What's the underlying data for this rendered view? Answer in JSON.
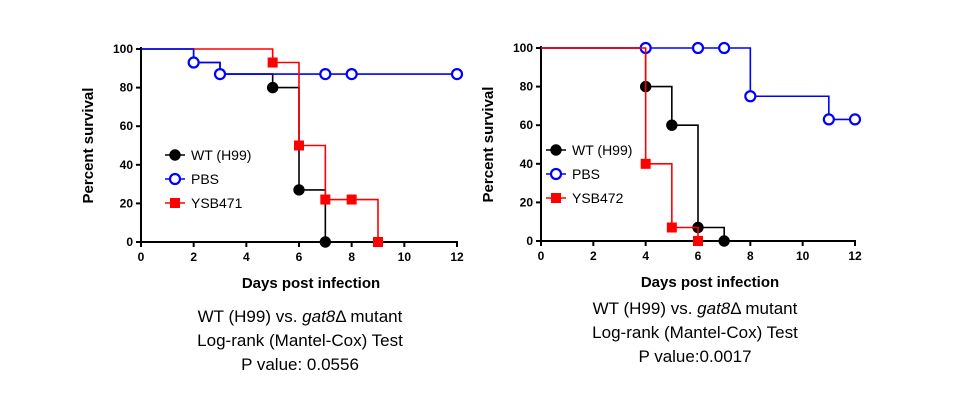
{
  "chart_data": [
    {
      "type": "line",
      "step": true,
      "xlabel": "Days post infection",
      "ylabel": "Percent survival",
      "xlim": [
        0,
        12
      ],
      "ylim": [
        0,
        100
      ],
      "xticks": [
        "0",
        "2",
        "4",
        "6",
        "8",
        "10",
        "12"
      ],
      "yticks": [
        "0",
        "20",
        "40",
        "60",
        "80",
        "100"
      ],
      "legend_position": "center-left",
      "series": [
        {
          "name": "WT (H99)",
          "color": "#000000",
          "marker": "filled-circle",
          "x": [
            0,
            2,
            3,
            5,
            6,
            7
          ],
          "y": [
            100,
            93,
            87,
            80,
            27,
            0
          ],
          "marker_x": [
            2,
            3,
            5,
            6,
            7
          ],
          "marker_y": [
            93,
            87,
            80,
            27,
            0
          ]
        },
        {
          "name": "PBS",
          "color": "#0000ff",
          "marker": "open-circle",
          "x": [
            0,
            2,
            3,
            12
          ],
          "y": [
            100,
            93,
            87,
            87
          ],
          "marker_x": [
            2,
            3,
            7,
            8,
            12
          ],
          "marker_y": [
            93,
            87,
            87,
            87,
            87
          ]
        },
        {
          "name": "YSB471",
          "color": "#ff0000",
          "marker": "filled-square",
          "x": [
            2,
            5,
            6,
            7,
            9
          ],
          "y": [
            100,
            93,
            50,
            22,
            0
          ],
          "marker_x": [
            5,
            6,
            7,
            8,
            9
          ],
          "marker_y": [
            93,
            50,
            22,
            22,
            0
          ]
        }
      ],
      "caption": {
        "line1_pre": "WT (H99) vs. ",
        "line1_italic": "gat8",
        "line1_post": "Δ mutant",
        "line2": "Log-rank (Mantel-Cox) Test",
        "line3": "P value: 0.0556"
      }
    },
    {
      "type": "line",
      "step": true,
      "xlabel": "Days post infection",
      "ylabel": "Percent survival",
      "xlim": [
        0,
        12
      ],
      "ylim": [
        0,
        100
      ],
      "xticks": [
        "0",
        "2",
        "4",
        "6",
        "8",
        "10",
        "12"
      ],
      "yticks": [
        "0",
        "20",
        "40",
        "60",
        "80",
        "100"
      ],
      "legend_position": "center-left",
      "series": [
        {
          "name": "WT (H99)",
          "color": "#000000",
          "marker": "filled-circle",
          "x": [
            0,
            4,
            5,
            6,
            7
          ],
          "y": [
            100,
            80,
            60,
            7,
            0
          ],
          "marker_x": [
            4,
            5,
            6,
            7
          ],
          "marker_y": [
            80,
            60,
            7,
            0
          ]
        },
        {
          "name": "PBS",
          "color": "#0000ff",
          "marker": "open-circle",
          "x": [
            0,
            8,
            11,
            12
          ],
          "y": [
            100,
            75,
            63,
            63
          ],
          "marker_x": [
            4,
            6,
            7,
            8,
            11,
            12
          ],
          "marker_y": [
            100,
            100,
            100,
            75,
            63,
            63
          ]
        },
        {
          "name": "YSB472",
          "color": "#ff0000",
          "marker": "filled-square",
          "x": [
            0,
            4,
            5,
            6
          ],
          "y": [
            100,
            40,
            7,
            0
          ],
          "marker_x": [
            4,
            5,
            6
          ],
          "marker_y": [
            40,
            7,
            0
          ]
        }
      ],
      "caption": {
        "line1_pre": "WT (H99) vs. ",
        "line1_italic": "gat8",
        "line1_post": "Δ mutant",
        "line2": "Log-rank (Mantel-Cox) Test",
        "line3": "P value:0.0017"
      }
    }
  ]
}
